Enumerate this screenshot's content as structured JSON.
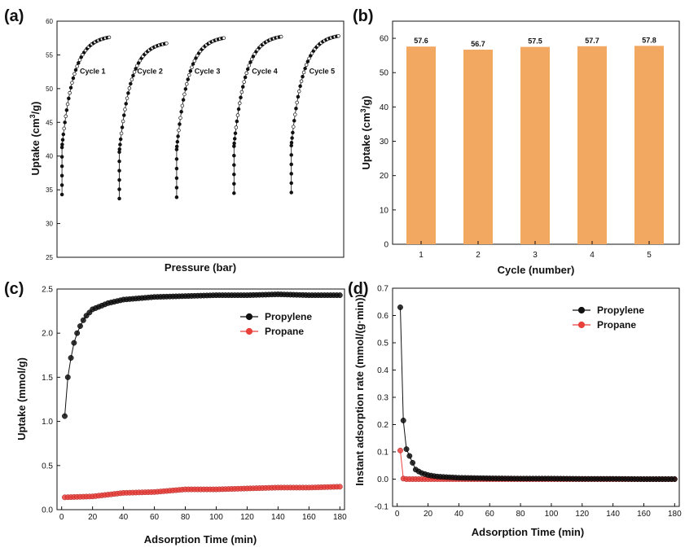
{
  "chart_data": [
    {
      "panel": "(a)",
      "type": "scatter",
      "xlabel": "Pressure (bar)",
      "ylabel": "Uptake (cm3/g)",
      "ylim": [
        25,
        60
      ],
      "yticks": [
        25,
        30,
        35,
        40,
        45,
        50,
        55,
        60
      ],
      "xlim": [
        0,
        5
      ],
      "x_ticks_shown": false,
      "series": [
        {
          "name": "Cycle 1",
          "min": 34.3,
          "max": 57.6
        },
        {
          "name": "Cycle 2",
          "min": 33.7,
          "max": 56.7
        },
        {
          "name": "Cycle 3",
          "min": 33.9,
          "max": 57.5
        },
        {
          "name": "Cycle 4",
          "min": 34.5,
          "max": 57.7
        },
        {
          "name": "Cycle 5",
          "min": 34.6,
          "max": 57.8
        }
      ],
      "annotations": [
        "Cycle 1",
        "Cycle 2",
        "Cycle 3",
        "Cycle 4",
        "Cycle 5"
      ],
      "colors": {
        "filled": "#111111",
        "open": "#ffffff"
      }
    },
    {
      "panel": "(b)",
      "type": "bar",
      "xlabel": "Cycle (number)",
      "ylabel": "Uptake (cm3/g)",
      "categories": [
        "1",
        "2",
        "3",
        "4",
        "5"
      ],
      "values": [
        57.6,
        56.7,
        57.5,
        57.7,
        57.8
      ],
      "data_labels": [
        "57.6",
        "56.7",
        "57.5",
        "57.7",
        "57.8"
      ],
      "ylim": [
        0,
        65
      ],
      "yticks": [
        0,
        10,
        20,
        30,
        40,
        50,
        60
      ],
      "colors": {
        "bar": "#f2a860"
      }
    },
    {
      "panel": "(c)",
      "type": "line",
      "xlabel": "Adsorption Time (min)",
      "ylabel": "Uptake (mmol/g)",
      "xlim": [
        -3,
        183
      ],
      "ylim": [
        0,
        2.5
      ],
      "xticks": [
        0,
        20,
        40,
        60,
        80,
        100,
        120,
        140,
        160,
        180
      ],
      "yticks": [
        0.0,
        0.5,
        1.0,
        1.5,
        2.0,
        2.5
      ],
      "legend": "top-right",
      "series": [
        {
          "name": "Propylene",
          "color": "#111111",
          "x": [
            2,
            4,
            6,
            8,
            10,
            12,
            15,
            20,
            30,
            40,
            60,
            80,
            100,
            120,
            140,
            160,
            180
          ],
          "y": [
            1.06,
            1.5,
            1.72,
            1.89,
            2.0,
            2.08,
            2.18,
            2.27,
            2.34,
            2.38,
            2.41,
            2.42,
            2.43,
            2.43,
            2.44,
            2.43,
            2.43
          ]
        },
        {
          "name": "Propane",
          "color": "#e8413c",
          "x": [
            2,
            20,
            40,
            60,
            80,
            100,
            120,
            140,
            160,
            180
          ],
          "y": [
            0.14,
            0.15,
            0.19,
            0.2,
            0.23,
            0.23,
            0.24,
            0.25,
            0.25,
            0.26
          ]
        }
      ]
    },
    {
      "panel": "(d)",
      "type": "line",
      "xlabel": "Adsorption Time (min)",
      "ylabel": "Instant adsorption rate (mmol/(g·min))",
      "xlim": [
        -3,
        183
      ],
      "ylim": [
        -0.1,
        0.7
      ],
      "xticks": [
        0,
        20,
        40,
        60,
        80,
        100,
        120,
        140,
        160,
        180
      ],
      "yticks": [
        -0.1,
        0.0,
        0.1,
        0.2,
        0.3,
        0.4,
        0.5,
        0.6,
        0.7
      ],
      "legend": "top-right",
      "series": [
        {
          "name": "Propylene",
          "color": "#111111",
          "x": [
            2,
            4,
            6,
            8,
            10,
            12,
            14,
            16,
            20,
            25,
            30,
            40,
            60,
            80,
            100,
            120,
            140,
            160,
            180
          ],
          "y": [
            0.63,
            0.215,
            0.11,
            0.085,
            0.06,
            0.035,
            0.028,
            0.022,
            0.015,
            0.01,
            0.008,
            0.005,
            0.003,
            0.002,
            0.002,
            0.001,
            0.001,
            0.0,
            0.0
          ]
        },
        {
          "name": "Propane",
          "color": "#e8413c",
          "x": [
            2,
            4,
            6,
            10,
            20,
            40,
            60,
            80,
            100,
            120,
            140,
            160,
            180
          ],
          "y": [
            0.105,
            0.002,
            0.0,
            0.0,
            0.0,
            0.0,
            0.0,
            0.0,
            0.0,
            0.0,
            0.0,
            0.0,
            0.0
          ]
        }
      ]
    }
  ]
}
